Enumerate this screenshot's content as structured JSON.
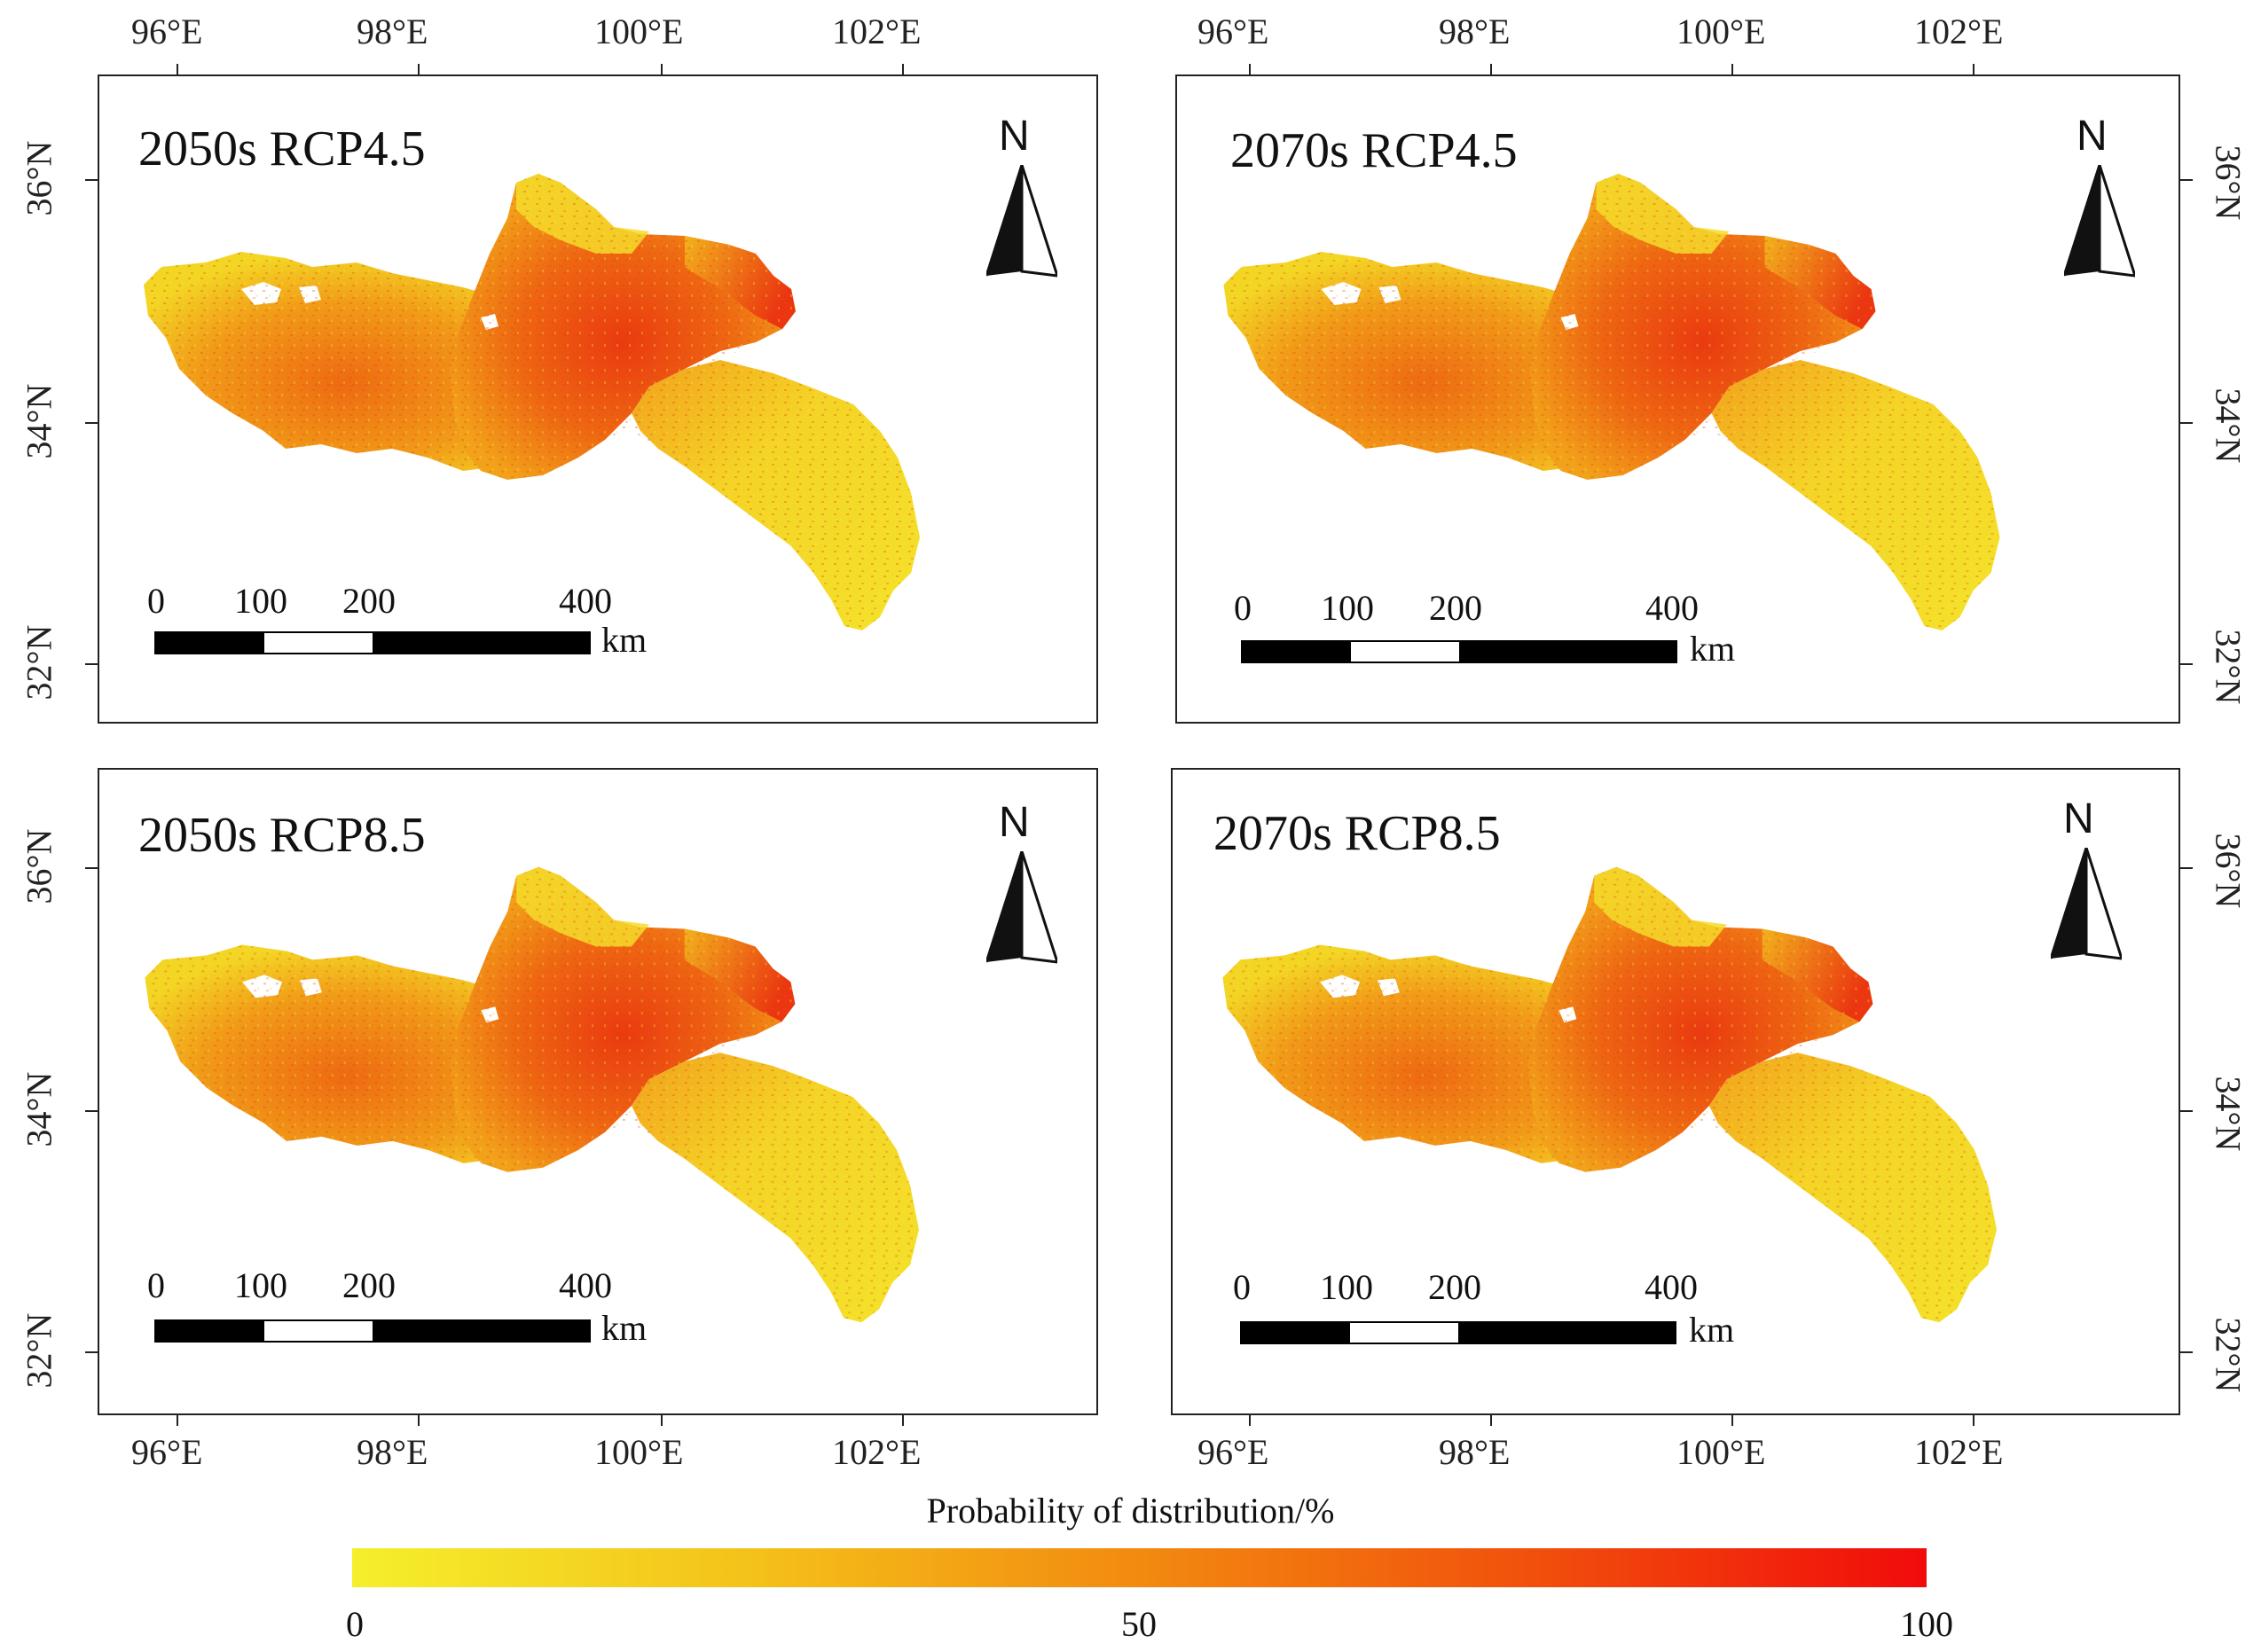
{
  "maps": [
    {
      "title": "2050s RCP4.5"
    },
    {
      "title": "2070s RCP4.5"
    },
    {
      "title": "2050s RCP8.5"
    },
    {
      "title": "2070s RCP8.5"
    }
  ],
  "longitude_ticks": [
    "96°E",
    "98°E",
    "100°E",
    "102°E"
  ],
  "latitude_ticks": [
    "36°N",
    "34°N",
    "32°N"
  ],
  "scale_bar": {
    "labels": [
      "0",
      "100",
      "200",
      "400"
    ],
    "unit": "km"
  },
  "north_arrow_label": "N",
  "legend": {
    "title": "Probability of distribution/%",
    "labels": [
      "0",
      "50",
      "100"
    ],
    "min": 0,
    "mid": 50,
    "max": 100,
    "colors": {
      "low": "#f5ef2c",
      "mid": "#f28a10",
      "high": "#f10b0b"
    }
  }
}
